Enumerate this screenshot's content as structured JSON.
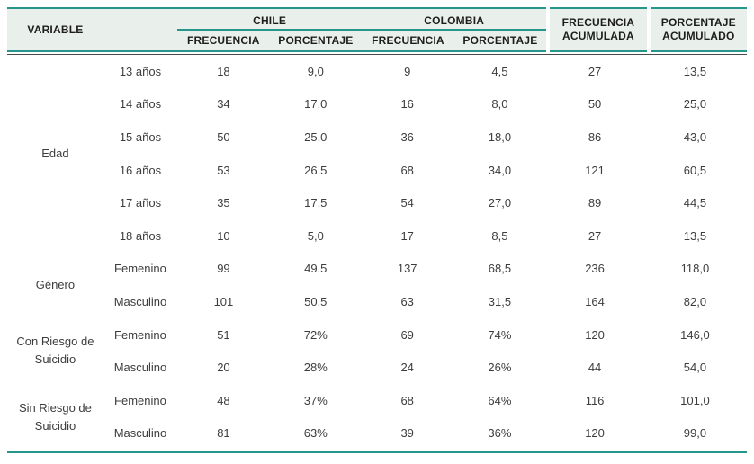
{
  "table": {
    "header": {
      "variable": "VARIABLE",
      "groups": [
        {
          "label": "CHILE",
          "sub": [
            "FRECUENCIA",
            "PORCENTAJE"
          ]
        },
        {
          "label": "COLOMBIA",
          "sub": [
            "FRECUENCIA",
            "PORCENTAJE"
          ]
        }
      ],
      "frecuencia_acumulada": {
        "line1": "FRECUENCIA",
        "line2": "ACUMULADA"
      },
      "porcentaje_acumulado": {
        "line1": "PORCENTAJE",
        "line2": "ACUMULADO"
      }
    },
    "columns": [
      "VARIABLE",
      "",
      "CHILE FRECUENCIA",
      "CHILE PORCENTAJE",
      "COLOMBIA FRECUENCIA",
      "COLOMBIA PORCENTAJE",
      "FRECUENCIA ACUMULADA",
      "PORCENTAJE ACUMULADO"
    ],
    "row_groups": [
      {
        "label": "Edad",
        "rows": [
          {
            "category": "13 años",
            "values": [
              "18",
              "9,0",
              "9",
              "4,5",
              "27",
              "13,5"
            ]
          },
          {
            "category": "14 años",
            "values": [
              "34",
              "17,0",
              "16",
              "8,0",
              "50",
              "25,0"
            ]
          },
          {
            "category": "15 años",
            "values": [
              "50",
              "25,0",
              "36",
              "18,0",
              "86",
              "43,0"
            ]
          },
          {
            "category": "16 años",
            "values": [
              "53",
              "26,5",
              "68",
              "34,0",
              "121",
              "60,5"
            ]
          },
          {
            "category": "17 años",
            "values": [
              "35",
              "17,5",
              "54",
              "27,0",
              "89",
              "44,5"
            ]
          },
          {
            "category": "18 años",
            "values": [
              "10",
              "5,0",
              "17",
              "8,5",
              "27",
              "13,5"
            ]
          }
        ]
      },
      {
        "label": "Género",
        "rows": [
          {
            "category": "Femenino",
            "values": [
              "99",
              "49,5",
              "137",
              "68,5",
              "236",
              "118,0"
            ]
          },
          {
            "category": "Masculino",
            "values": [
              "101",
              "50,5",
              "63",
              "31,5",
              "164",
              "82,0"
            ]
          }
        ]
      },
      {
        "label": "Con Riesgo de Suicidio",
        "rows": [
          {
            "category": "Femenino",
            "values": [
              "51",
              "72%",
              "69",
              "74%",
              "120",
              "146,0"
            ]
          },
          {
            "category": "Masculino",
            "values": [
              "20",
              "28%",
              "24",
              "26%",
              "44",
              "54,0"
            ]
          }
        ]
      },
      {
        "label": "Sin Riesgo de Suicidio",
        "rows": [
          {
            "category": "Femenino",
            "values": [
              "48",
              "37%",
              "68",
              "64%",
              "116",
              "101,0"
            ]
          },
          {
            "category": "Masculino",
            "values": [
              "81",
              "63%",
              "39",
              "36%",
              "120",
              "99,0"
            ]
          }
        ]
      }
    ],
    "colors": {
      "teal_rule": "#27968a",
      "header_background": "#e9f0ec",
      "dark_rule": "#4a4a4a",
      "body_text": "#3d3d3d"
    }
  }
}
